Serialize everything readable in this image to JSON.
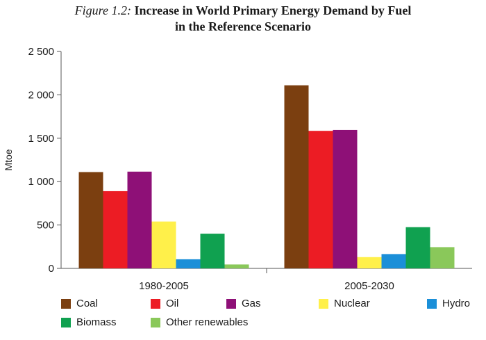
{
  "title": {
    "figure_label": "Figure 1.2:",
    "line1": "Increase in World Primary Energy Demand by Fuel",
    "line2": "in the Reference Scenario"
  },
  "chart_data": {
    "type": "bar",
    "categories": [
      "1980-2005",
      "2005-2030"
    ],
    "series": [
      {
        "name": "Coal",
        "color": "#7b3f10",
        "values": [
          1110,
          2110
        ]
      },
      {
        "name": "Oil",
        "color": "#ec1c24",
        "values": [
          890,
          1585
        ]
      },
      {
        "name": "Gas",
        "color": "#8e1077",
        "values": [
          1115,
          1595
        ]
      },
      {
        "name": "Nuclear",
        "color": "#fff04a",
        "values": [
          540,
          130
        ]
      },
      {
        "name": "Hydro",
        "color": "#1b8fd8",
        "values": [
          105,
          165
        ]
      },
      {
        "name": "Biomass",
        "color": "#10a150",
        "values": [
          400,
          475
        ]
      },
      {
        "name": "Other renewables",
        "color": "#8ac85a",
        "values": [
          45,
          245
        ]
      }
    ],
    "ylabel": "Mtoe",
    "xlabel": "",
    "ylim": [
      0,
      2500
    ],
    "yticks": [
      0,
      500,
      1000,
      1500,
      2000,
      2500
    ],
    "ytick_labels": [
      "0",
      "500",
      "1 000",
      "1 500",
      "2 000",
      "2 500"
    ],
    "grid": false,
    "legend_position": "bottom"
  }
}
